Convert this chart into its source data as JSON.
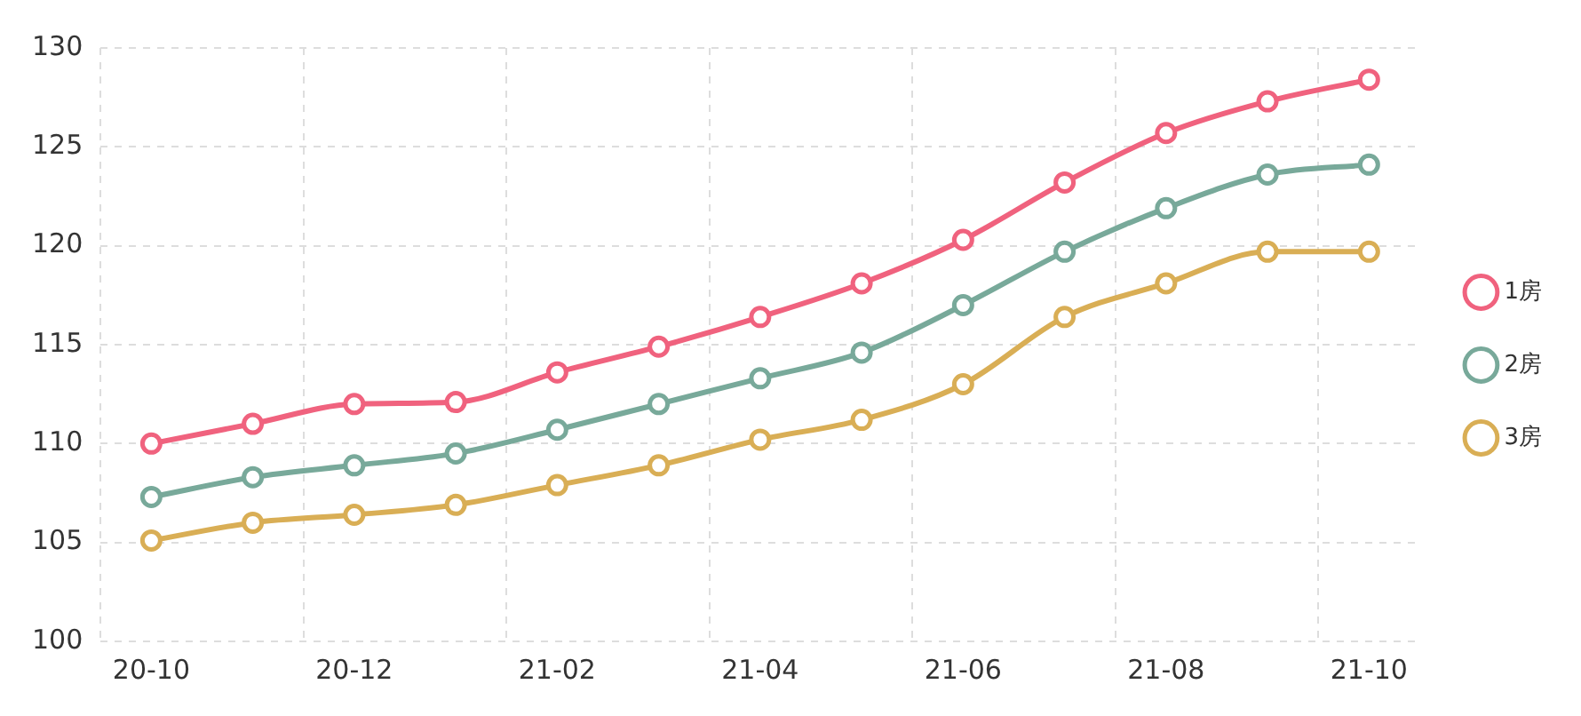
{
  "chart_data": {
    "type": "line",
    "categories": [
      "20-10",
      null,
      "20-12",
      null,
      "21-02",
      null,
      "21-04",
      null,
      "21-06",
      null,
      "21-08",
      null,
      "21-10"
    ],
    "series": [
      {
        "name": "1房",
        "color": "#f0627e",
        "values": [
          110.0,
          111.0,
          112.0,
          112.1,
          113.6,
          114.9,
          116.4,
          118.1,
          120.3,
          123.2,
          125.7,
          127.3,
          128.4
        ]
      },
      {
        "name": "2房",
        "color": "#78a99a",
        "values": [
          107.3,
          108.3,
          108.9,
          109.5,
          110.7,
          112.0,
          113.3,
          114.6,
          117.0,
          119.7,
          121.9,
          123.6,
          124.1
        ]
      },
      {
        "name": "3房",
        "color": "#d9ae55",
        "values": [
          105.1,
          106.0,
          106.4,
          106.9,
          107.9,
          108.9,
          110.2,
          111.2,
          113.0,
          116.4,
          118.1,
          119.7,
          119.7
        ]
      }
    ],
    "ylim": [
      100,
      130
    ],
    "yticks": [
      100,
      105,
      110,
      115,
      120,
      125,
      130
    ],
    "grid": true,
    "legend": "right",
    "marker": "circle",
    "line_style": "solid"
  }
}
